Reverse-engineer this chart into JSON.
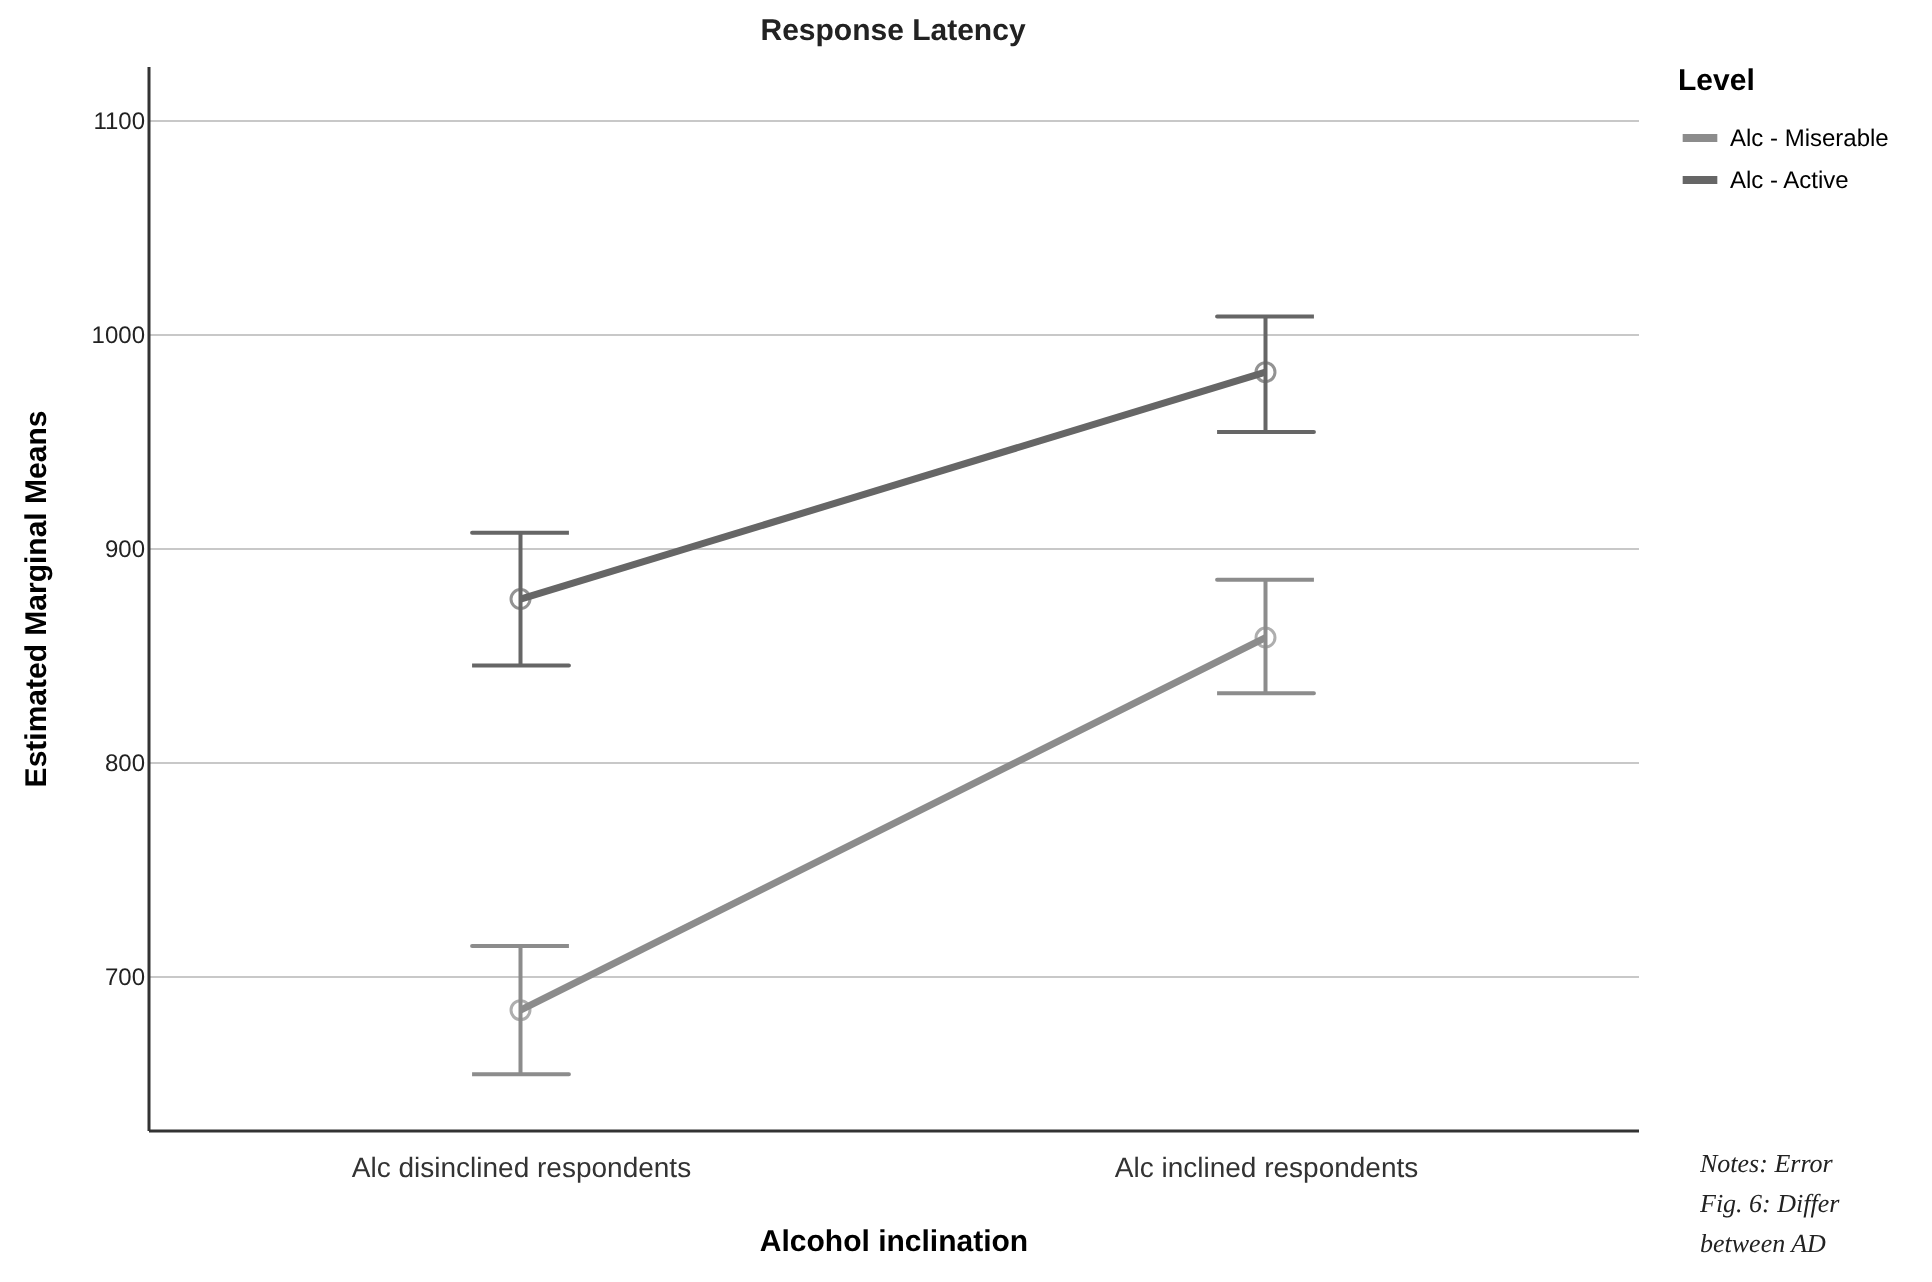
{
  "chart_data": {
    "type": "line",
    "title": "Response Latency",
    "xlabel": "Alcohol inclination",
    "ylabel": "Estimated Marginal Means",
    "legend_title": "Level",
    "categories": [
      "Alc disinclined respondents",
      "Alc inclined respondents"
    ],
    "series": [
      {
        "name": "Alc - Miserable",
        "color": "#8c8c8c",
        "values": [
          684,
          858
        ],
        "errors": [
          [
            654,
            714
          ],
          [
            832,
            885
          ]
        ]
      },
      {
        "name": "Alc - Active",
        "color": "#666666",
        "values": [
          876,
          982
        ],
        "errors": [
          [
            845,
            907
          ],
          [
            954,
            1008
          ]
        ]
      }
    ],
    "ylim": [
      628,
      1125
    ],
    "yticks": [
      700,
      800,
      900,
      {
        "value": 1000,
        "label": "1000"
      },
      {
        "value": 1100,
        "label": "1100"
      }
    ],
    "grid": "y",
    "legend": "right",
    "marker": "circle",
    "annotations": [
      "Notes: Error",
      "Fig. 6: Differ",
      "between AD"
    ]
  }
}
